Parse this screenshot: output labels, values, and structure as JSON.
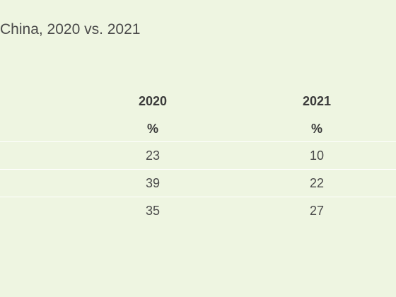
{
  "subtitle": "China, 2020 vs. 2021",
  "chart_data": {
    "type": "table",
    "title": "China, 2020 vs. 2021",
    "columns": [
      "2020",
      "2021"
    ],
    "units": [
      "%",
      "%"
    ],
    "rows": [
      [
        "23",
        "10"
      ],
      [
        "39",
        "22"
      ],
      [
        "35",
        "27"
      ]
    ]
  },
  "colors": {
    "background": "#eef5e1",
    "text": "#3a3a3a",
    "rule": "#ffffff"
  }
}
